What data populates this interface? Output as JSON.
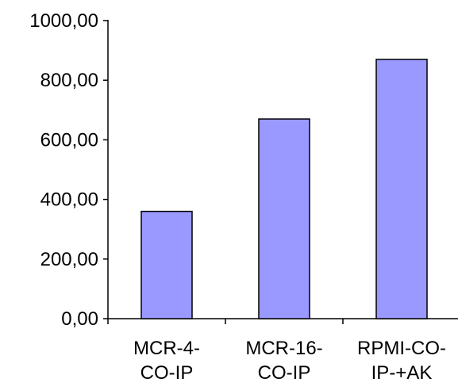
{
  "chart_data": {
    "type": "bar",
    "categories": [
      [
        "MCR-4-",
        "CO-IP"
      ],
      [
        "MCR-16-",
        "CO-IP"
      ],
      [
        "RPMI-CO-",
        "IP-+AK"
      ]
    ],
    "series": [
      {
        "values": [
          360,
          670,
          870
        ]
      }
    ],
    "y_ticks": [
      "0,00",
      "200,00",
      "400,00",
      "600,00",
      "800,00",
      "1000,00"
    ],
    "ylim": [
      0,
      1000
    ],
    "title": "",
    "xlabel": "",
    "ylabel": "",
    "grid": false,
    "legend": "none",
    "colors": {
      "bar_fill": "#9999ff",
      "bar_stroke": "#000000",
      "axis": "#000000",
      "background": "#ffffff"
    }
  }
}
